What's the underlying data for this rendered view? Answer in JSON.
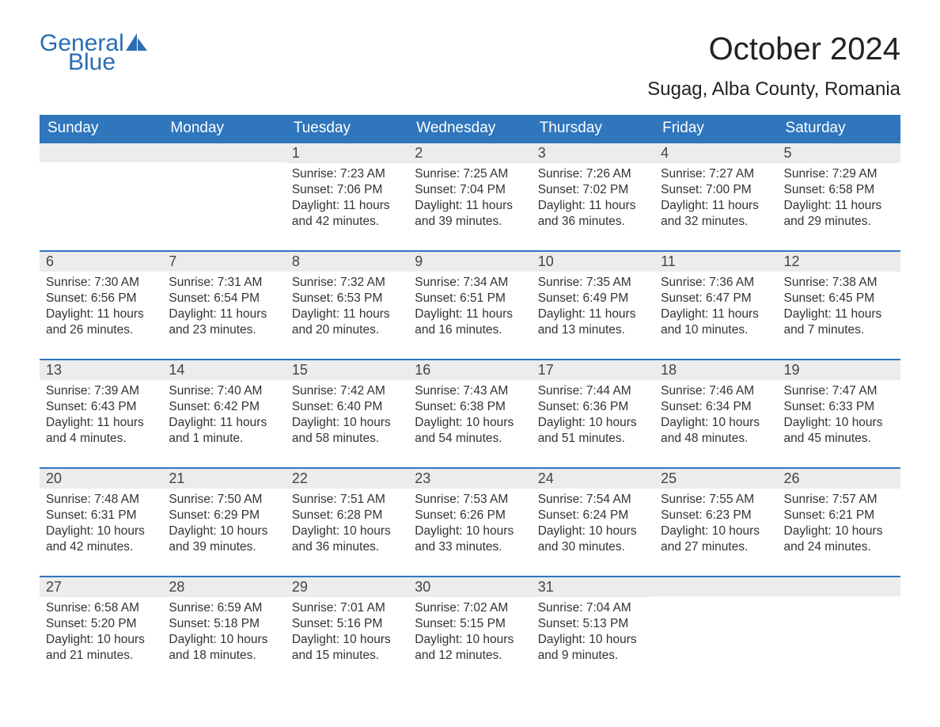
{
  "brand": {
    "word1": "General",
    "word2": "Blue"
  },
  "colors": {
    "brand_blue": "#2a6db3",
    "header_bg": "#2f76bd",
    "header_text": "#ffffff",
    "daynum_bg": "#ececec",
    "text": "#333333",
    "page_bg": "#ffffff",
    "week_border": "#2f76bd"
  },
  "typography": {
    "title_fontsize": 40,
    "location_fontsize": 24,
    "dayheader_fontsize": 19,
    "daynum_fontsize": 18,
    "body_fontsize": 15.5,
    "logo_fontsize": 30
  },
  "title": "October 2024",
  "location": "Sugag, Alba County, Romania",
  "day_headers": [
    "Sunday",
    "Monday",
    "Tuesday",
    "Wednesday",
    "Thursday",
    "Friday",
    "Saturday"
  ],
  "weeks": [
    [
      null,
      null,
      {
        "n": "1",
        "sunrise": "Sunrise: 7:23 AM",
        "sunset": "Sunset: 7:06 PM",
        "d1": "Daylight: 11 hours",
        "d2": "and 42 minutes."
      },
      {
        "n": "2",
        "sunrise": "Sunrise: 7:25 AM",
        "sunset": "Sunset: 7:04 PM",
        "d1": "Daylight: 11 hours",
        "d2": "and 39 minutes."
      },
      {
        "n": "3",
        "sunrise": "Sunrise: 7:26 AM",
        "sunset": "Sunset: 7:02 PM",
        "d1": "Daylight: 11 hours",
        "d2": "and 36 minutes."
      },
      {
        "n": "4",
        "sunrise": "Sunrise: 7:27 AM",
        "sunset": "Sunset: 7:00 PM",
        "d1": "Daylight: 11 hours",
        "d2": "and 32 minutes."
      },
      {
        "n": "5",
        "sunrise": "Sunrise: 7:29 AM",
        "sunset": "Sunset: 6:58 PM",
        "d1": "Daylight: 11 hours",
        "d2": "and 29 minutes."
      }
    ],
    [
      {
        "n": "6",
        "sunrise": "Sunrise: 7:30 AM",
        "sunset": "Sunset: 6:56 PM",
        "d1": "Daylight: 11 hours",
        "d2": "and 26 minutes."
      },
      {
        "n": "7",
        "sunrise": "Sunrise: 7:31 AM",
        "sunset": "Sunset: 6:54 PM",
        "d1": "Daylight: 11 hours",
        "d2": "and 23 minutes."
      },
      {
        "n": "8",
        "sunrise": "Sunrise: 7:32 AM",
        "sunset": "Sunset: 6:53 PM",
        "d1": "Daylight: 11 hours",
        "d2": "and 20 minutes."
      },
      {
        "n": "9",
        "sunrise": "Sunrise: 7:34 AM",
        "sunset": "Sunset: 6:51 PM",
        "d1": "Daylight: 11 hours",
        "d2": "and 16 minutes."
      },
      {
        "n": "10",
        "sunrise": "Sunrise: 7:35 AM",
        "sunset": "Sunset: 6:49 PM",
        "d1": "Daylight: 11 hours",
        "d2": "and 13 minutes."
      },
      {
        "n": "11",
        "sunrise": "Sunrise: 7:36 AM",
        "sunset": "Sunset: 6:47 PM",
        "d1": "Daylight: 11 hours",
        "d2": "and 10 minutes."
      },
      {
        "n": "12",
        "sunrise": "Sunrise: 7:38 AM",
        "sunset": "Sunset: 6:45 PM",
        "d1": "Daylight: 11 hours",
        "d2": "and 7 minutes."
      }
    ],
    [
      {
        "n": "13",
        "sunrise": "Sunrise: 7:39 AM",
        "sunset": "Sunset: 6:43 PM",
        "d1": "Daylight: 11 hours",
        "d2": "and 4 minutes."
      },
      {
        "n": "14",
        "sunrise": "Sunrise: 7:40 AM",
        "sunset": "Sunset: 6:42 PM",
        "d1": "Daylight: 11 hours",
        "d2": "and 1 minute."
      },
      {
        "n": "15",
        "sunrise": "Sunrise: 7:42 AM",
        "sunset": "Sunset: 6:40 PM",
        "d1": "Daylight: 10 hours",
        "d2": "and 58 minutes."
      },
      {
        "n": "16",
        "sunrise": "Sunrise: 7:43 AM",
        "sunset": "Sunset: 6:38 PM",
        "d1": "Daylight: 10 hours",
        "d2": "and 54 minutes."
      },
      {
        "n": "17",
        "sunrise": "Sunrise: 7:44 AM",
        "sunset": "Sunset: 6:36 PM",
        "d1": "Daylight: 10 hours",
        "d2": "and 51 minutes."
      },
      {
        "n": "18",
        "sunrise": "Sunrise: 7:46 AM",
        "sunset": "Sunset: 6:34 PM",
        "d1": "Daylight: 10 hours",
        "d2": "and 48 minutes."
      },
      {
        "n": "19",
        "sunrise": "Sunrise: 7:47 AM",
        "sunset": "Sunset: 6:33 PM",
        "d1": "Daylight: 10 hours",
        "d2": "and 45 minutes."
      }
    ],
    [
      {
        "n": "20",
        "sunrise": "Sunrise: 7:48 AM",
        "sunset": "Sunset: 6:31 PM",
        "d1": "Daylight: 10 hours",
        "d2": "and 42 minutes."
      },
      {
        "n": "21",
        "sunrise": "Sunrise: 7:50 AM",
        "sunset": "Sunset: 6:29 PM",
        "d1": "Daylight: 10 hours",
        "d2": "and 39 minutes."
      },
      {
        "n": "22",
        "sunrise": "Sunrise: 7:51 AM",
        "sunset": "Sunset: 6:28 PM",
        "d1": "Daylight: 10 hours",
        "d2": "and 36 minutes."
      },
      {
        "n": "23",
        "sunrise": "Sunrise: 7:53 AM",
        "sunset": "Sunset: 6:26 PM",
        "d1": "Daylight: 10 hours",
        "d2": "and 33 minutes."
      },
      {
        "n": "24",
        "sunrise": "Sunrise: 7:54 AM",
        "sunset": "Sunset: 6:24 PM",
        "d1": "Daylight: 10 hours",
        "d2": "and 30 minutes."
      },
      {
        "n": "25",
        "sunrise": "Sunrise: 7:55 AM",
        "sunset": "Sunset: 6:23 PM",
        "d1": "Daylight: 10 hours",
        "d2": "and 27 minutes."
      },
      {
        "n": "26",
        "sunrise": "Sunrise: 7:57 AM",
        "sunset": "Sunset: 6:21 PM",
        "d1": "Daylight: 10 hours",
        "d2": "and 24 minutes."
      }
    ],
    [
      {
        "n": "27",
        "sunrise": "Sunrise: 6:58 AM",
        "sunset": "Sunset: 5:20 PM",
        "d1": "Daylight: 10 hours",
        "d2": "and 21 minutes."
      },
      {
        "n": "28",
        "sunrise": "Sunrise: 6:59 AM",
        "sunset": "Sunset: 5:18 PM",
        "d1": "Daylight: 10 hours",
        "d2": "and 18 minutes."
      },
      {
        "n": "29",
        "sunrise": "Sunrise: 7:01 AM",
        "sunset": "Sunset: 5:16 PM",
        "d1": "Daylight: 10 hours",
        "d2": "and 15 minutes."
      },
      {
        "n": "30",
        "sunrise": "Sunrise: 7:02 AM",
        "sunset": "Sunset: 5:15 PM",
        "d1": "Daylight: 10 hours",
        "d2": "and 12 minutes."
      },
      {
        "n": "31",
        "sunrise": "Sunrise: 7:04 AM",
        "sunset": "Sunset: 5:13 PM",
        "d1": "Daylight: 10 hours",
        "d2": "and 9 minutes."
      },
      null,
      null
    ]
  ]
}
